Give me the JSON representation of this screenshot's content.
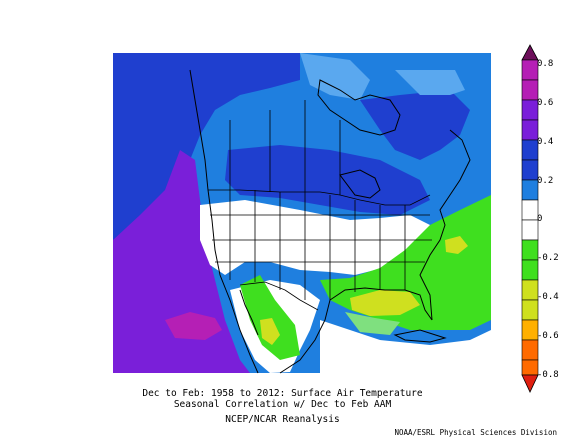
{
  "caption": {
    "line1": "Dec to Feb: 1958 to 2012: Surface Air Temperature",
    "line2": "Seasonal Correlation w/ Dec to Feb AAM",
    "line3": "NCEP/NCAR Reanalysis"
  },
  "credit": "NOAA/ESRL Physical Sciences Division",
  "colorbar": {
    "labels": [
      "0.8",
      "0.6",
      "0.4",
      "0.2",
      "0",
      "-0.2",
      "-0.4",
      "-0.6",
      "-0.8"
    ],
    "colors": [
      "#6d0f5a",
      "#b51fb5",
      "#7a1fd9",
      "#1f3fcf",
      "#1f7fdf",
      "#ffffff",
      "#3fdf1f",
      "#cfe01f",
      "#ffb000",
      "#ff6a00",
      "#e01f10"
    ]
  },
  "map": {
    "region": "North America",
    "variable": "Surface Air Temperature correlation"
  }
}
